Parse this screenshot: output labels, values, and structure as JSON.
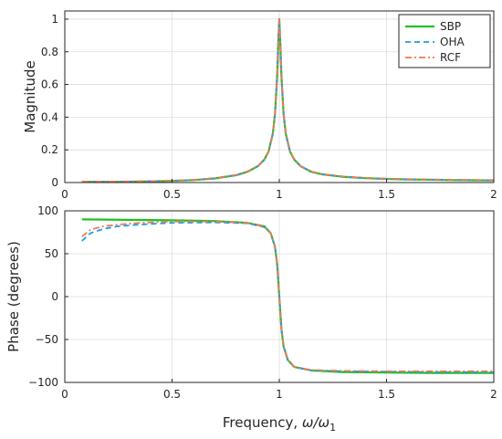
{
  "chart_data": [
    {
      "type": "line",
      "panel": "magnitude",
      "ylabel": "Magnitude",
      "xlim": [
        0,
        2
      ],
      "ylim": [
        0,
        1.05
      ],
      "xticks": [
        0,
        0.5,
        1,
        1.5,
        2
      ],
      "xtick_labels": [
        "0",
        "0.5",
        "1",
        "1.5",
        "2"
      ],
      "yticks": [
        0,
        0.2,
        0.4,
        0.6,
        0.8,
        1
      ],
      "ytick_labels": [
        "0",
        "0.2",
        "0.4",
        "0.6",
        "0.8",
        "1"
      ],
      "grid": true,
      "legend": "top-right",
      "series": [
        {
          "name": "SBP",
          "color": "#1fc21f",
          "dash": "solid",
          "width": 2.2,
          "x": [
            0.08,
            0.2,
            0.3,
            0.4,
            0.5,
            0.6,
            0.7,
            0.8,
            0.85,
            0.9,
            0.93,
            0.95,
            0.97,
            0.98,
            0.99,
            0.995,
            1.0,
            1.005,
            1.01,
            1.02,
            1.03,
            1.05,
            1.07,
            1.1,
            1.15,
            1.2,
            1.3,
            1.4,
            1.5,
            1.6,
            1.7,
            1.8,
            1.9,
            2.0
          ],
          "y": [
            0.004,
            0.004,
            0.005,
            0.007,
            0.01,
            0.015,
            0.025,
            0.045,
            0.065,
            0.1,
            0.14,
            0.19,
            0.3,
            0.42,
            0.65,
            0.85,
            1.0,
            0.85,
            0.65,
            0.42,
            0.3,
            0.19,
            0.14,
            0.1,
            0.065,
            0.05,
            0.035,
            0.027,
            0.022,
            0.019,
            0.017,
            0.015,
            0.014,
            0.013
          ]
        },
        {
          "name": "OHA",
          "color": "#1f9ae8",
          "dash": "dashed",
          "width": 1.8,
          "x": [
            0.08,
            0.2,
            0.3,
            0.4,
            0.5,
            0.6,
            0.7,
            0.8,
            0.85,
            0.9,
            0.93,
            0.95,
            0.97,
            0.98,
            0.99,
            0.995,
            1.0,
            1.005,
            1.01,
            1.02,
            1.03,
            1.05,
            1.07,
            1.1,
            1.15,
            1.2,
            1.3,
            1.4,
            1.5,
            1.6,
            1.7,
            1.8,
            1.9,
            2.0
          ],
          "y": [
            0.005,
            0.005,
            0.006,
            0.008,
            0.011,
            0.016,
            0.026,
            0.046,
            0.066,
            0.1,
            0.14,
            0.19,
            0.3,
            0.42,
            0.65,
            0.85,
            1.0,
            0.85,
            0.65,
            0.42,
            0.3,
            0.19,
            0.14,
            0.1,
            0.066,
            0.051,
            0.036,
            0.028,
            0.023,
            0.02,
            0.018,
            0.016,
            0.015,
            0.014
          ]
        },
        {
          "name": "RCF",
          "color": "#f07858",
          "dash": "dashdot",
          "width": 1.8,
          "x": [
            0.08,
            0.2,
            0.3,
            0.4,
            0.5,
            0.6,
            0.7,
            0.8,
            0.85,
            0.9,
            0.93,
            0.95,
            0.97,
            0.98,
            0.99,
            0.995,
            1.0,
            1.005,
            1.01,
            1.02,
            1.03,
            1.05,
            1.07,
            1.1,
            1.15,
            1.2,
            1.3,
            1.4,
            1.5,
            1.6,
            1.7,
            1.8,
            1.9,
            2.0
          ],
          "y": [
            0.006,
            0.006,
            0.007,
            0.009,
            0.012,
            0.017,
            0.027,
            0.047,
            0.067,
            0.1,
            0.14,
            0.19,
            0.3,
            0.42,
            0.65,
            0.85,
            1.0,
            0.85,
            0.65,
            0.42,
            0.3,
            0.19,
            0.14,
            0.1,
            0.067,
            0.052,
            0.037,
            0.029,
            0.024,
            0.021,
            0.019,
            0.017,
            0.016,
            0.015
          ]
        }
      ]
    },
    {
      "type": "line",
      "panel": "phase",
      "ylabel": "Phase (degrees)",
      "xlabel_main": "Frequency, ",
      "xlabel_math": "ω/ω",
      "xlabel_sub": "1",
      "xlim": [
        0,
        2
      ],
      "ylim": [
        -100,
        100
      ],
      "xticks": [
        0,
        0.5,
        1,
        1.5,
        2
      ],
      "xtick_labels": [
        "0",
        "0.5",
        "1",
        "1.5",
        "2"
      ],
      "yticks": [
        -100,
        -50,
        0,
        50,
        100
      ],
      "ytick_labels": [
        "−100",
        "−50",
        "0",
        "50",
        "100"
      ],
      "grid": true,
      "series": [
        {
          "name": "SBP",
          "color": "#1fc21f",
          "dash": "solid",
          "width": 2.2,
          "x": [
            0.08,
            0.3,
            0.5,
            0.7,
            0.85,
            0.93,
            0.96,
            0.98,
            0.99,
            1.0,
            1.01,
            1.02,
            1.04,
            1.07,
            1.15,
            1.3,
            1.5,
            1.7,
            2.0
          ],
          "y": [
            90,
            89.5,
            89,
            88,
            86,
            82,
            74,
            58,
            38,
            0,
            -38,
            -58,
            -74,
            -82,
            -86,
            -88,
            -88.5,
            -89,
            -89
          ]
        },
        {
          "name": "OHA",
          "color": "#1f9ae8",
          "dash": "dashed",
          "width": 1.8,
          "x": [
            0.08,
            0.12,
            0.18,
            0.25,
            0.35,
            0.5,
            0.7,
            0.85,
            0.93,
            0.96,
            0.98,
            0.99,
            1.0,
            1.01,
            1.02,
            1.04,
            1.07,
            1.15,
            1.3,
            1.5,
            1.7,
            2.0
          ],
          "y": [
            65,
            74,
            79,
            82,
            84,
            86,
            86.5,
            85.5,
            81,
            74,
            58,
            38,
            0,
            -38,
            -58,
            -74,
            -82,
            -86,
            -87,
            -87.5,
            -88,
            -88
          ]
        },
        {
          "name": "RCF",
          "color": "#f07858",
          "dash": "dashdot",
          "width": 1.8,
          "x": [
            0.08,
            0.12,
            0.18,
            0.25,
            0.35,
            0.5,
            0.7,
            0.85,
            0.93,
            0.96,
            0.98,
            0.99,
            1.0,
            1.01,
            1.02,
            1.04,
            1.07,
            1.15,
            1.3,
            1.5,
            1.7,
            2.0
          ],
          "y": [
            70,
            78,
            82,
            84,
            86,
            87.5,
            87.5,
            86,
            81.5,
            74,
            58,
            38,
            0,
            -38,
            -58,
            -74,
            -82,
            -85.5,
            -86.5,
            -87,
            -87,
            -87
          ]
        }
      ]
    }
  ]
}
